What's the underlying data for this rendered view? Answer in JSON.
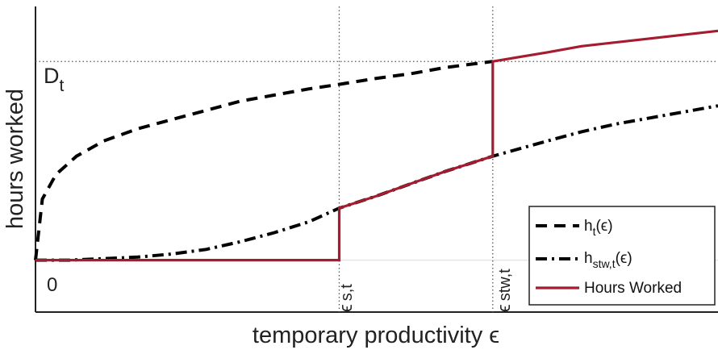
{
  "chart_data": {
    "type": "line",
    "title": "",
    "xlabel": "temporary productivity ϵ",
    "ylabel": "hours worked",
    "xlim": [
      0,
      1
    ],
    "ylim": [
      0,
      1
    ],
    "grid": false,
    "legend_position": "bottom-right",
    "D_t_level": 0.82,
    "zero_level": 0.17,
    "eps_s_t": 0.445,
    "eps_stw_t": 0.67,
    "annotations": {
      "dt_main": "D",
      "dt_sub": "t",
      "zero": "0",
      "eps_s_main": "ϵ",
      "eps_s_sub": "s,t",
      "eps_stw_main": "ϵ",
      "eps_stw_sub": "stw,t"
    },
    "series": [
      {
        "key": "h_t",
        "legend_main": "h",
        "legend_sub": "t",
        "legend_suffix": "(ϵ)",
        "style": "dashed",
        "color": "#000000",
        "x": [
          0.0,
          0.01,
          0.03,
          0.06,
          0.1,
          0.15,
          0.2,
          0.25,
          0.3,
          0.35,
          0.4,
          0.445,
          0.5,
          0.55,
          0.6,
          0.67
        ],
        "y": [
          0.17,
          0.37,
          0.45,
          0.51,
          0.56,
          0.6,
          0.63,
          0.66,
          0.69,
          0.71,
          0.73,
          0.745,
          0.765,
          0.78,
          0.8,
          0.82
        ]
      },
      {
        "key": "h_stw_t",
        "legend_main": "h",
        "legend_sub": "stw,t",
        "legend_suffix": "(ϵ)",
        "style": "dashdot",
        "color": "#000000",
        "x": [
          0.0,
          0.05,
          0.1,
          0.15,
          0.2,
          0.25,
          0.3,
          0.35,
          0.4,
          0.445,
          0.5,
          0.55,
          0.6,
          0.67,
          0.75,
          0.8,
          0.85,
          0.9,
          0.95,
          1.0
        ],
        "y": [
          0.17,
          0.17,
          0.175,
          0.18,
          0.19,
          0.205,
          0.23,
          0.26,
          0.295,
          0.34,
          0.38,
          0.42,
          0.46,
          0.51,
          0.56,
          0.59,
          0.615,
          0.635,
          0.655,
          0.675
        ]
      },
      {
        "key": "hours_worked",
        "legend_main": "Hours Worked",
        "legend_sub": "",
        "legend_suffix": "",
        "style": "solid",
        "color": "#a51c30",
        "x": [
          0.0,
          0.445,
          0.445,
          0.5,
          0.55,
          0.6,
          0.67,
          0.67,
          0.75,
          0.8,
          0.9,
          1.0
        ],
        "y": [
          0.17,
          0.17,
          0.34,
          0.38,
          0.42,
          0.46,
          0.51,
          0.82,
          0.85,
          0.87,
          0.895,
          0.92
        ]
      }
    ]
  }
}
